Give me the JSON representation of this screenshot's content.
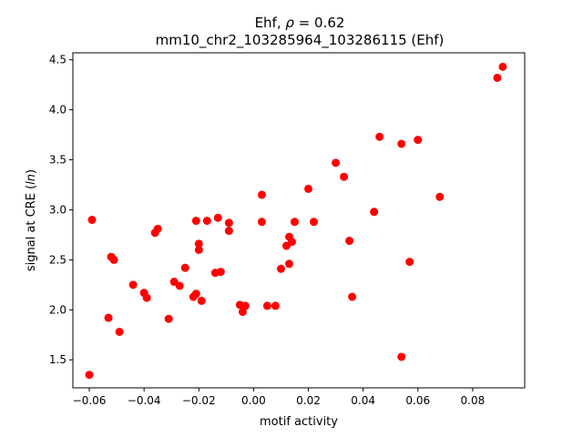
{
  "chart_data": {
    "type": "scatter",
    "title_line1": "Ehf, ρ = 0.62",
    "title_line2": "mm10_chr2_103285964_103286115 (Ehf)",
    "xlabel": "motif activity",
    "ylabel": "signal at CRE (ln)",
    "xlim": [
      -0.066,
      0.099
    ],
    "ylim": [
      1.22,
      4.57
    ],
    "xticks": [
      -0.06,
      -0.04,
      -0.02,
      0.0,
      0.02,
      0.04,
      0.06,
      0.08
    ],
    "xtick_labels": [
      "−0.06",
      "−0.04",
      "−0.02",
      "0.00",
      "0.02",
      "0.04",
      "0.06",
      "0.08"
    ],
    "yticks": [
      1.5,
      2.0,
      2.5,
      3.0,
      3.5,
      4.0,
      4.5
    ],
    "ytick_labels": [
      "1.5",
      "2.0",
      "2.5",
      "3.0",
      "3.5",
      "4.0",
      "4.5"
    ],
    "marker_color": "#ff0000",
    "grid": false,
    "points": [
      [
        -0.06,
        1.35
      ],
      [
        -0.059,
        2.9
      ],
      [
        -0.053,
        1.92
      ],
      [
        -0.052,
        2.53
      ],
      [
        -0.051,
        2.5
      ],
      [
        -0.049,
        1.78
      ],
      [
        -0.044,
        2.25
      ],
      [
        -0.04,
        2.17
      ],
      [
        -0.039,
        2.12
      ],
      [
        -0.036,
        2.77
      ],
      [
        -0.035,
        2.81
      ],
      [
        -0.031,
        1.91
      ],
      [
        -0.029,
        2.28
      ],
      [
        -0.027,
        2.24
      ],
      [
        -0.025,
        2.42
      ],
      [
        -0.022,
        2.13
      ],
      [
        -0.021,
        2.89
      ],
      [
        -0.021,
        2.16
      ],
      [
        -0.02,
        2.6
      ],
      [
        -0.02,
        2.66
      ],
      [
        -0.019,
        2.09
      ],
      [
        -0.017,
        2.89
      ],
      [
        -0.014,
        2.37
      ],
      [
        -0.013,
        2.92
      ],
      [
        -0.012,
        2.38
      ],
      [
        -0.009,
        2.79
      ],
      [
        -0.009,
        2.87
      ],
      [
        -0.005,
        2.05
      ],
      [
        -0.004,
        1.98
      ],
      [
        -0.003,
        2.04
      ],
      [
        0.003,
        3.15
      ],
      [
        0.003,
        2.88
      ],
      [
        0.005,
        2.04
      ],
      [
        0.008,
        2.04
      ],
      [
        0.01,
        2.41
      ],
      [
        0.012,
        2.64
      ],
      [
        0.013,
        2.46
      ],
      [
        0.013,
        2.73
      ],
      [
        0.014,
        2.68
      ],
      [
        0.015,
        2.88
      ],
      [
        0.02,
        3.21
      ],
      [
        0.022,
        2.88
      ],
      [
        0.03,
        3.47
      ],
      [
        0.033,
        3.33
      ],
      [
        0.035,
        2.69
      ],
      [
        0.036,
        2.13
      ],
      [
        0.044,
        2.98
      ],
      [
        0.046,
        3.73
      ],
      [
        0.054,
        3.66
      ],
      [
        0.054,
        1.53
      ],
      [
        0.057,
        2.48
      ],
      [
        0.06,
        3.7
      ],
      [
        0.068,
        3.13
      ],
      [
        0.089,
        4.32
      ],
      [
        0.091,
        4.43
      ]
    ]
  }
}
